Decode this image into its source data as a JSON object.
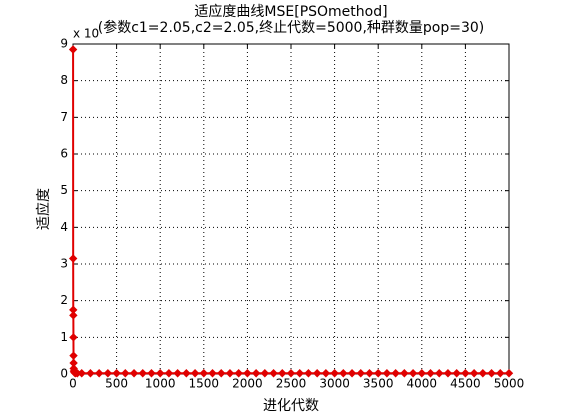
{
  "chart_data": {
    "type": "line",
    "title": "适应度曲线MSE[PSOmethod]",
    "subtitle": "(参数c1=2.05,c2=2.05,终止代数=5000,种群数量pop=30)",
    "x_label": "进化代数",
    "y_label": "适应度",
    "y_exponent_label": "x 10",
    "x": [
      1,
      2,
      3,
      4,
      5,
      6,
      7,
      8,
      10,
      15,
      20,
      30,
      50,
      100,
      200,
      300,
      400,
      500,
      600,
      700,
      800,
      900,
      1000,
      1100,
      1200,
      1300,
      1400,
      1500,
      1600,
      1700,
      1800,
      1900,
      2000,
      2100,
      2200,
      2300,
      2400,
      2500,
      2600,
      2700,
      2800,
      2900,
      3000,
      3100,
      3200,
      3300,
      3400,
      3500,
      3600,
      3700,
      3800,
      3900,
      4000,
      4100,
      4200,
      4300,
      4400,
      4500,
      4600,
      4700,
      4800,
      4900,
      5000
    ],
    "series": [
      {
        "color": "#e00000",
        "marker": "diamond",
        "values": [
          8.85,
          3.15,
          1.75,
          1.6,
          1.0,
          0.5,
          0.3,
          0.15,
          0.08,
          0.05,
          0.03,
          0.02,
          0.02,
          0.02,
          0.02,
          0.02,
          0.02,
          0.02,
          0.02,
          0.02,
          0.02,
          0.02,
          0.02,
          0.02,
          0.02,
          0.02,
          0.02,
          0.02,
          0.02,
          0.02,
          0.02,
          0.02,
          0.02,
          0.02,
          0.02,
          0.02,
          0.02,
          0.02,
          0.02,
          0.02,
          0.02,
          0.02,
          0.02,
          0.02,
          0.02,
          0.02,
          0.02,
          0.02,
          0.02,
          0.02,
          0.02,
          0.02,
          0.02,
          0.02,
          0.02,
          0.02,
          0.02,
          0.02,
          0.02,
          0.02,
          0.02,
          0.02,
          0.02
        ]
      }
    ],
    "xlim": [
      0,
      5000
    ],
    "xticks": [
      0,
      500,
      1000,
      1500,
      2000,
      2500,
      3000,
      3500,
      4000,
      4500,
      5000
    ],
    "ylim": [
      0,
      9
    ],
    "yticks": [
      0,
      1,
      2,
      3,
      4,
      5,
      6,
      7,
      8,
      9
    ],
    "grid": true
  }
}
